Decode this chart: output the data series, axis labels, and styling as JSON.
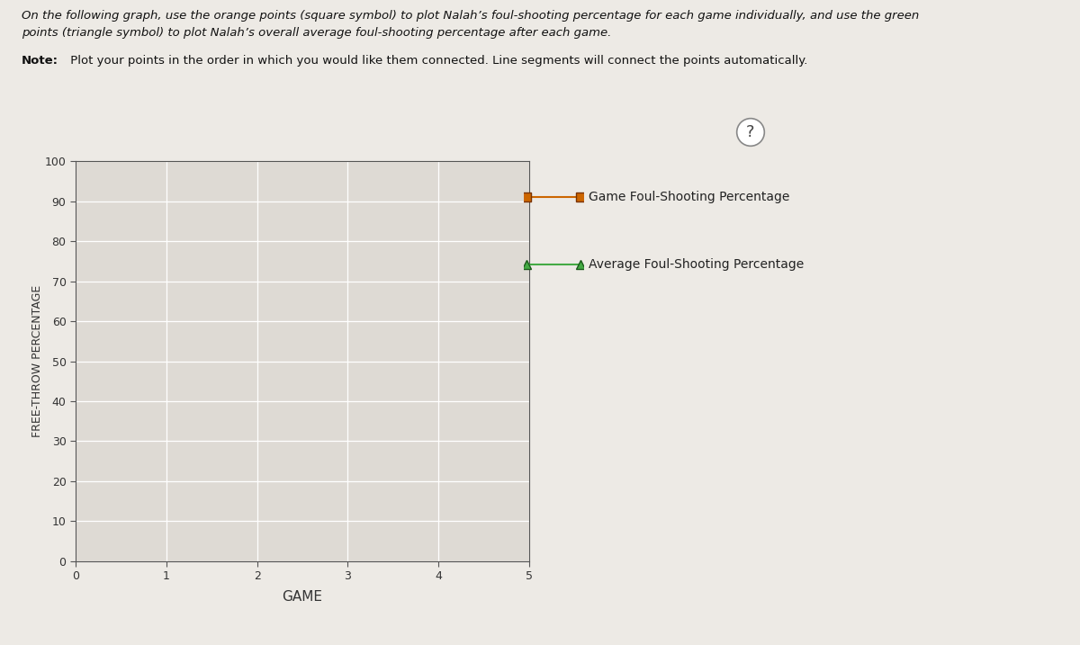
{
  "ylabel": "FREE-THROW PERCENTAGE",
  "xlabel": "GAME",
  "xlim": [
    0,
    5
  ],
  "ylim": [
    0,
    100
  ],
  "xticks": [
    0,
    1,
    2,
    3,
    4,
    5
  ],
  "yticks": [
    0,
    10,
    20,
    30,
    40,
    50,
    60,
    70,
    80,
    90,
    100
  ],
  "bg_color": "#edeae5",
  "plot_bg_color": "#dedad4",
  "orange_color": "#cc6600",
  "green_color": "#44aa44",
  "orange_edge_color": "#7a3300",
  "green_edge_color": "#1a5a1a",
  "legend_label_game": "Game Foul-Shooting Percentage",
  "legend_label_avg": "Average Foul-Shooting Percentage",
  "question_mark_text": "?",
  "header_line1": "On the following graph, use the orange points (square symbol) to plot Nalah’s foul-shooting percentage for each game individually, and use the green",
  "header_line2": "points (triangle symbol) to plot Nalah’s overall average foul-shooting percentage after each game.",
  "header_line3": "Note: Plot your points in the order in which you would like them connected. Line segments will connect the points automatically.",
  "note_bold": "Note:",
  "fig_width": 12.0,
  "fig_height": 7.17
}
